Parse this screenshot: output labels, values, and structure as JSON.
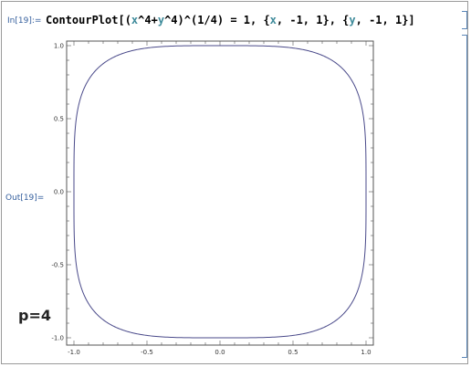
{
  "notebook": {
    "input_prompt": "In[19]:=",
    "output_prompt": "Out[19]=",
    "input_tokens": [
      {
        "text": "ContourPlot[(",
        "kind": "plain"
      },
      {
        "text": "x",
        "kind": "var"
      },
      {
        "text": "^4+",
        "kind": "plain"
      },
      {
        "text": "y",
        "kind": "var"
      },
      {
        "text": "^4)^(1/4) = 1, {",
        "kind": "plain"
      },
      {
        "text": "x",
        "kind": "var"
      },
      {
        "text": ", -1, 1}, {",
        "kind": "plain"
      },
      {
        "text": "y",
        "kind": "var"
      },
      {
        "text": ", -1, 1}]",
        "kind": "plain"
      }
    ],
    "annotation": "p=4"
  },
  "colors": {
    "prompt": "#36609e",
    "variable": "#3d8a9a",
    "contour": "#4a4a8a",
    "frame": "#555555",
    "bracket": "#5a86b7"
  },
  "chart_data": {
    "type": "line",
    "p": 4,
    "xlim": [
      -1,
      1
    ],
    "ylim": [
      -1,
      1
    ],
    "x_ticks": [
      "-1.0",
      "-0.5",
      "0.0",
      "0.5",
      "1.0"
    ],
    "y_ticks": [
      "-1.0",
      "-0.5",
      "0.0",
      "0.5",
      "1.0"
    ],
    "x_tick_values": [
      -1,
      -0.5,
      0,
      0.5,
      1
    ],
    "y_tick_values": [
      -1,
      -0.5,
      0,
      0.5,
      1
    ],
    "grid": false,
    "series": [
      {
        "equation": "(x^4+y^4)^(1/4) = 1"
      }
    ]
  }
}
